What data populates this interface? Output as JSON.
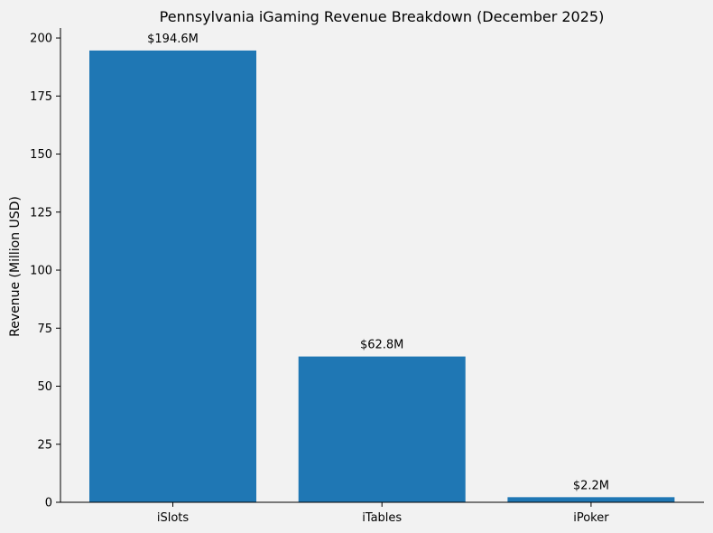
{
  "chart_data": {
    "type": "bar",
    "title": "Pennsylvania iGaming Revenue Breakdown (December 2025)",
    "xlabel": "",
    "ylabel": "Revenue (Million USD)",
    "categories": [
      "iSlots",
      "iTables",
      "iPoker"
    ],
    "values": [
      194.6,
      62.8,
      2.2
    ],
    "data_labels": [
      "$194.6M",
      "$62.8M",
      "$2.2M"
    ],
    "ylim": [
      0,
      204.3
    ],
    "yticks": [
      0,
      25,
      50,
      75,
      100,
      125,
      150,
      175,
      200
    ],
    "ytick_labels": [
      "0",
      "25",
      "50",
      "75",
      "100",
      "125",
      "150",
      "175",
      "200"
    ],
    "grid": false,
    "bar_color": "#1f77b4"
  },
  "colors": {
    "background": "#f2f2f2",
    "axis": "#000000"
  }
}
